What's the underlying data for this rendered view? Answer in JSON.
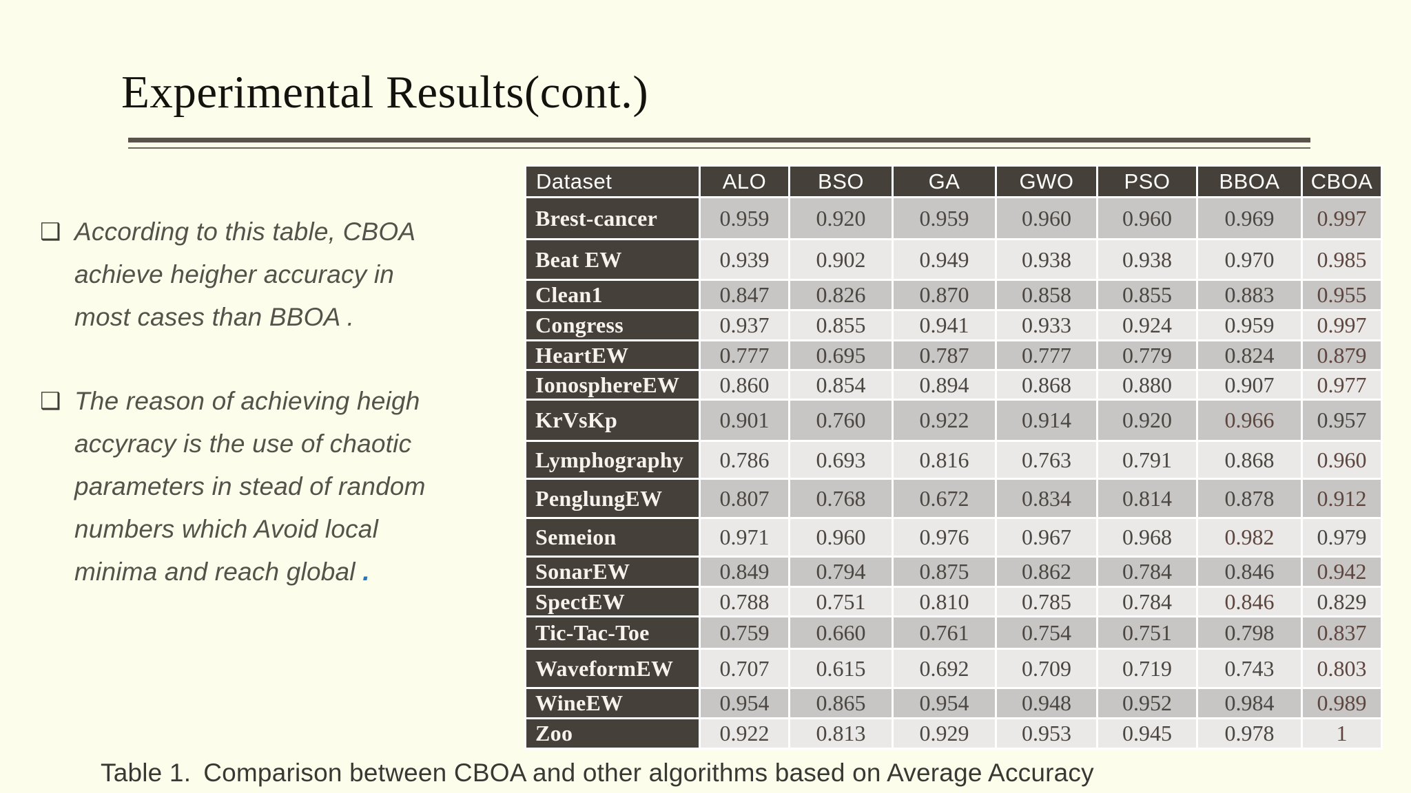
{
  "slide": {
    "title": "Experimental Results(cont.)",
    "bullets": [
      {
        "lines": [
          "According to this table, CBOA",
          "achieve heigher accuracy in",
          "most cases than BBOA ."
        ]
      },
      {
        "lines": [
          "The reason of achieving heigh",
          "accyracy is the use of chaotic",
          "parameters in stead of random",
          "numbers which Avoid local",
          "minima and reach global"
        ],
        "trailing": {
          "text": ".",
          "color": "#2e74b5"
        }
      }
    ],
    "caption_prefix": "Table 1.",
    "caption_text": "Comparison between CBOA and other algorithms based on Average Accuracy"
  },
  "icons": {
    "bullet_icon": "❑"
  },
  "colors": {
    "background": "#fdfdec",
    "highlight_red": "#fb0603",
    "header_bg": "#46403a",
    "row_dark": "#c7c6c4",
    "row_light": "#eae9e7",
    "blue_period": "#2e74b5"
  },
  "table": {
    "columns": [
      "Dataset",
      "ALO",
      "BSO",
      "GA",
      "GWO",
      "PSO",
      "BBOA",
      "CBOA"
    ],
    "rows": [
      {
        "dataset": "Brest-cancer",
        "values": [
          "0.959",
          "0.920",
          "0.959",
          "0.960",
          "0.960",
          "0.969",
          "0.997"
        ],
        "best": "CBOA"
      },
      {
        "dataset": "Beat EW",
        "values": [
          "0.939",
          "0.902",
          "0.949",
          "0.938",
          "0.938",
          "0.970",
          "0.985"
        ],
        "best": "CBOA"
      },
      {
        "dataset": "Clean1",
        "values": [
          "0.847",
          "0.826",
          "0.870",
          "0.858",
          "0.855",
          "0.883",
          "0.955"
        ],
        "best": "CBOA"
      },
      {
        "dataset": "Congress",
        "values": [
          "0.937",
          "0.855",
          "0.941",
          "0.933",
          "0.924",
          "0.959",
          "0.997"
        ],
        "best": "CBOA"
      },
      {
        "dataset": "HeartEW",
        "values": [
          "0.777",
          "0.695",
          "0.787",
          "0.777",
          "0.779",
          "0.824",
          "0.879"
        ],
        "best": "CBOA"
      },
      {
        "dataset": "IonosphereEW",
        "values": [
          "0.860",
          "0.854",
          "0.894",
          "0.868",
          "0.880",
          "0.907",
          "0.977"
        ],
        "best": "CBOA"
      },
      {
        "dataset": "KrVsKp",
        "values": [
          "0.901",
          "0.760",
          "0.922",
          "0.914",
          "0.920",
          "0.966",
          "0.957"
        ],
        "best": "BBOA"
      },
      {
        "dataset": "Lymphography",
        "values": [
          "0.786",
          "0.693",
          "0.816",
          "0.763",
          "0.791",
          "0.868",
          "0.960"
        ],
        "best": "CBOA"
      },
      {
        "dataset": "PenglungEW",
        "values": [
          "0.807",
          "0.768",
          "0.672",
          "0.834",
          "0.814",
          "0.878",
          "0.912"
        ],
        "best": "CBOA"
      },
      {
        "dataset": "Semeion",
        "values": [
          "0.971",
          "0.960",
          "0.976",
          "0.967",
          "0.968",
          "0.982",
          "0.979"
        ],
        "best": "BBOA"
      },
      {
        "dataset": "SonarEW",
        "values": [
          "0.849",
          "0.794",
          "0.875",
          "0.862",
          "0.784",
          "0.846",
          "0.942"
        ],
        "best": "CBOA"
      },
      {
        "dataset": "SpectEW",
        "values": [
          "0.788",
          "0.751",
          "0.810",
          "0.785",
          "0.784",
          "0.846",
          "0.829"
        ],
        "best": "BBOA"
      },
      {
        "dataset": "Tic-Tac-Toe",
        "values": [
          "0.759",
          "0.660",
          "0.761",
          "0.754",
          "0.751",
          "0.798",
          "0.837"
        ],
        "best": "CBOA"
      },
      {
        "dataset": "WaveformEW",
        "values": [
          "0.707",
          "0.615",
          "0.692",
          "0.709",
          "0.719",
          "0.743",
          "0.803"
        ],
        "best": "CBOA"
      },
      {
        "dataset": "WineEW",
        "values": [
          "0.954",
          "0.865",
          "0.954",
          "0.948",
          "0.952",
          "0.984",
          "0.989"
        ],
        "best": "CBOA"
      },
      {
        "dataset": "Zoo",
        "values": [
          "0.922",
          "0.813",
          "0.929",
          "0.953",
          "0.945",
          "0.978",
          "1"
        ],
        "best": "CBOA"
      }
    ]
  }
}
